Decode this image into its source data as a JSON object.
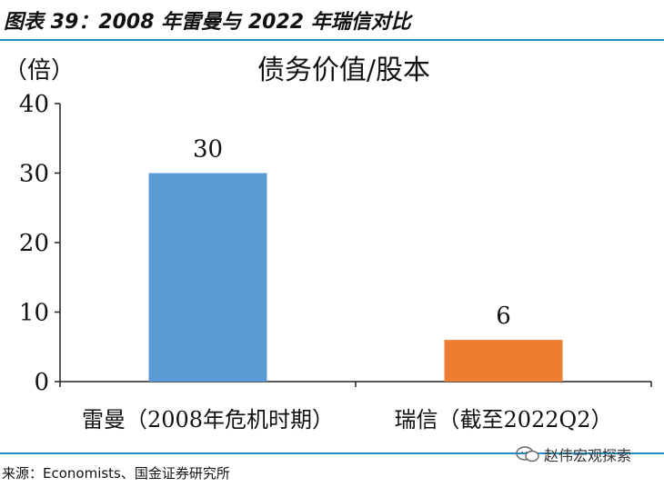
{
  "figure_title": "图表 39：2008 年雷曼与 2022 年瑞信对比",
  "source": "来源：Economists、国金证券研究所",
  "watermark": "赵伟宏观探索",
  "chart_data": {
    "type": "bar",
    "title": "债务价值/股本",
    "ylabel": "（倍）",
    "xlabel": "",
    "categories": [
      "雷曼（2008年危机时期）",
      "瑞信（截至2022Q2）"
    ],
    "values": [
      30,
      6
    ],
    "data_labels": [
      "30",
      "6"
    ],
    "colors": [
      "#5b9bd5",
      "#ed7d31"
    ],
    "ylim": [
      0,
      40
    ],
    "yticks": [
      0,
      10,
      20,
      30,
      40
    ],
    "grid": false,
    "legend": "none"
  }
}
